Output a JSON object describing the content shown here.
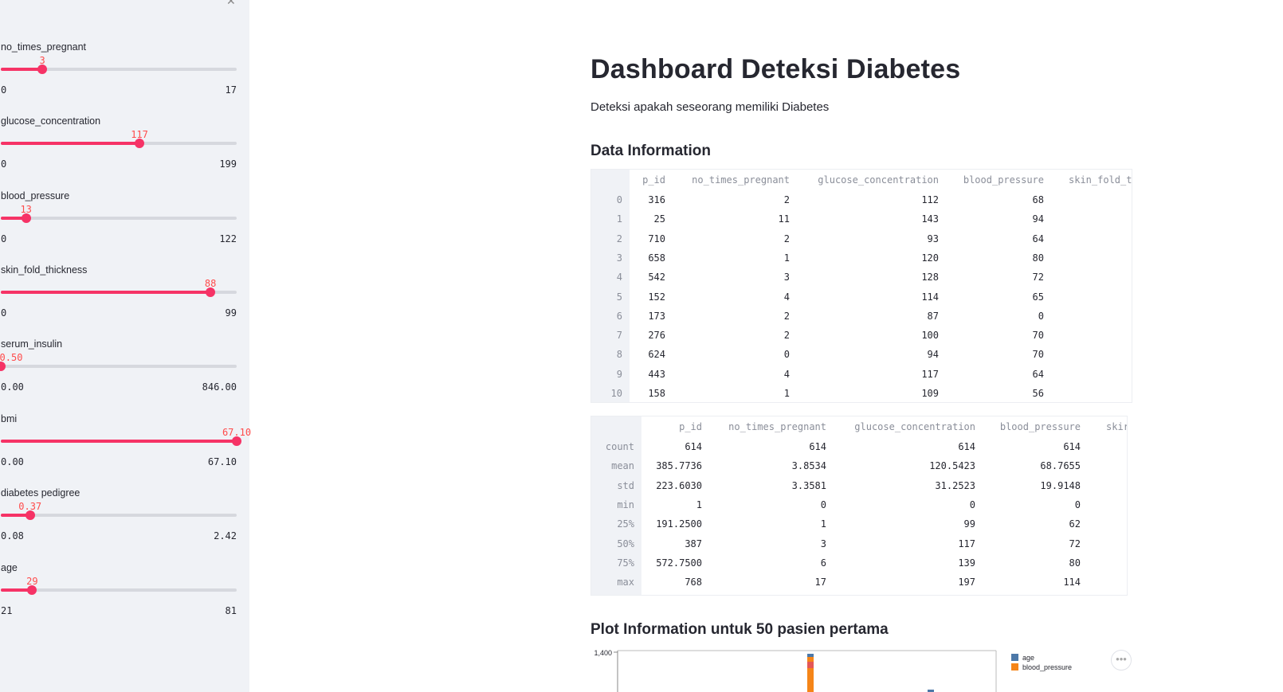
{
  "sidebar": {
    "sliders": [
      {
        "label": "no_times_pregnant",
        "value": "3",
        "min": "0",
        "max": "17",
        "fraction": 0.176
      },
      {
        "label": "glucose_concentration",
        "value": "117",
        "min": "0",
        "max": "199",
        "fraction": 0.588
      },
      {
        "label": "blood_pressure",
        "value": "13",
        "min": "0",
        "max": "122",
        "fraction": 0.107
      },
      {
        "label": "skin_fold_thickness",
        "value": "88",
        "min": "0",
        "max": "99",
        "fraction": 0.889
      },
      {
        "label": "serum_insulin",
        "value": "0.50",
        "min": "0.00",
        "max": "846.00",
        "fraction": 0.001
      },
      {
        "label": "bmi",
        "value": "67.10",
        "min": "0.00",
        "max": "67.10",
        "fraction": 1.0
      },
      {
        "label": "diabetes pedigree",
        "value": "0.37",
        "min": "0.08",
        "max": "2.42",
        "fraction": 0.124
      },
      {
        "label": "age",
        "value": "29",
        "min": "21",
        "max": "81",
        "fraction": 0.133
      }
    ]
  },
  "main": {
    "title": "Dashboard Deteksi Diabetes",
    "subtitle": "Deteksi apakah seseorang memiliki Diabetes",
    "data_heading": "Data Information",
    "plot_heading": "Plot Information untuk 50 pasien pertama"
  },
  "data_table": {
    "columns": [
      "p_id",
      "no_times_pregnant",
      "glucose_concentration",
      "blood_pressure",
      "skin_fold_t"
    ],
    "rows": [
      {
        "idx": "0",
        "cells": [
          "316",
          "2",
          "112",
          "68"
        ]
      },
      {
        "idx": "1",
        "cells": [
          "25",
          "11",
          "143",
          "94"
        ]
      },
      {
        "idx": "2",
        "cells": [
          "710",
          "2",
          "93",
          "64"
        ]
      },
      {
        "idx": "3",
        "cells": [
          "658",
          "1",
          "120",
          "80"
        ]
      },
      {
        "idx": "4",
        "cells": [
          "542",
          "3",
          "128",
          "72"
        ]
      },
      {
        "idx": "5",
        "cells": [
          "152",
          "4",
          "114",
          "65"
        ]
      },
      {
        "idx": "6",
        "cells": [
          "173",
          "2",
          "87",
          "0"
        ]
      },
      {
        "idx": "7",
        "cells": [
          "276",
          "2",
          "100",
          "70"
        ]
      },
      {
        "idx": "8",
        "cells": [
          "624",
          "0",
          "94",
          "70"
        ]
      },
      {
        "idx": "9",
        "cells": [
          "443",
          "4",
          "117",
          "64"
        ]
      },
      {
        "idx": "10",
        "cells": [
          "158",
          "1",
          "109",
          "56"
        ]
      }
    ]
  },
  "stats_table": {
    "columns": [
      "p_id",
      "no_times_pregnant",
      "glucose_concentration",
      "blood_pressure",
      "skir"
    ],
    "rows": [
      {
        "idx": "count",
        "cells": [
          "614",
          "614",
          "614",
          "614"
        ]
      },
      {
        "idx": "mean",
        "cells": [
          "385.7736",
          "3.8534",
          "120.5423",
          "68.7655"
        ]
      },
      {
        "idx": "std",
        "cells": [
          "223.6030",
          "3.3581",
          "31.2523",
          "19.9148"
        ]
      },
      {
        "idx": "min",
        "cells": [
          "1",
          "0",
          "0",
          "0"
        ]
      },
      {
        "idx": "25%",
        "cells": [
          "191.2500",
          "1",
          "99",
          "62"
        ]
      },
      {
        "idx": "50%",
        "cells": [
          "387",
          "3",
          "117",
          "72"
        ]
      },
      {
        "idx": "75%",
        "cells": [
          "572.7500",
          "6",
          "139",
          "80"
        ]
      },
      {
        "idx": "max",
        "cells": [
          "768",
          "17",
          "197",
          "114"
        ]
      }
    ]
  },
  "chart_data": {
    "type": "bar",
    "y_tick_visible": "1,400",
    "legend": [
      {
        "name": "age",
        "color": "#4c78a8"
      },
      {
        "name": "blood_pressure",
        "color": "#f58518"
      }
    ]
  },
  "icons": {
    "close": "close-icon",
    "more": "more-options-icon"
  },
  "colors": {
    "accent": "#f63366",
    "sidebar_bg": "#f0f2f6"
  }
}
